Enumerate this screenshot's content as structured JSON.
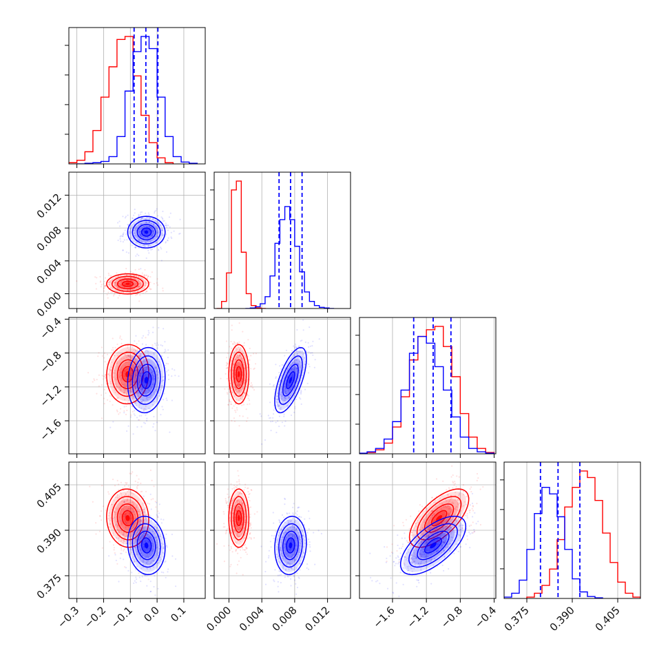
{
  "chart_data": {
    "type": "corner",
    "colors": {
      "primary": "#0000ff",
      "secondary": "#ff0000"
    },
    "parameters": [
      {
        "range": [
          -0.33,
          0.18
        ],
        "ticks": [
          -0.3,
          -0.2,
          -0.1,
          0.0,
          0.1
        ],
        "tick_labels": [
          "−0.3",
          "−0.2",
          "−0.1",
          "0.0",
          "0.1"
        ]
      },
      {
        "range": [
          -0.0018,
          0.0148
        ],
        "ticks": [
          0.0,
          0.004,
          0.008,
          0.012
        ],
        "tick_labels": [
          "0.000",
          "0.004",
          "0.008",
          "0.012"
        ]
      },
      {
        "range": [
          -1.99,
          -0.38
        ],
        "ticks": [
          -1.6,
          -1.2,
          -0.8,
          -0.4
        ],
        "tick_labels": [
          "−1.6",
          "−1.2",
          "−0.8",
          "−0.4"
        ]
      },
      {
        "range": [
          0.3675,
          0.4125
        ],
        "ticks": [
          0.375,
          0.39,
          0.405
        ],
        "tick_labels": [
          "0.375",
          "0.390",
          "0.405"
        ]
      }
    ],
    "primary": {
      "color": "#0000ff",
      "means": [
        -0.04,
        0.0075,
        -1.12,
        0.385
      ],
      "sds": [
        0.04,
        0.0011,
        0.22,
        0.0055
      ],
      "quantile_lines": [
        [
          -0.086,
          -0.042,
          0.003
        ],
        [
          0.0061,
          0.0075,
          0.0089
        ],
        [
          -1.35,
          -1.12,
          -0.91
        ],
        [
          0.3795,
          0.3853,
          0.3925
        ]
      ],
      "histograms": [
        {
          "edges": [
            -0.3,
            -0.27,
            -0.24,
            -0.21,
            -0.18,
            -0.15,
            -0.12,
            -0.09,
            -0.06,
            -0.03,
            0.0,
            0.03,
            0.06,
            0.09,
            0.12,
            0.15
          ],
          "counts": [
            0,
            1,
            2,
            4,
            12,
            45,
            120,
            185,
            210,
            190,
            110,
            45,
            12,
            3,
            1
          ]
        },
        {
          "edges": [
            0.002,
            0.0026,
            0.0032,
            0.0038,
            0.0044,
            0.005,
            0.0056,
            0.0062,
            0.0068,
            0.0074,
            0.008,
            0.0086,
            0.0092,
            0.0098,
            0.0104,
            0.011,
            0.0116,
            0.0122,
            0.0128
          ],
          "counts": [
            0,
            1,
            3,
            8,
            20,
            55,
            110,
            150,
            172,
            150,
            105,
            62,
            28,
            12,
            5,
            2,
            1,
            0
          ]
        },
        {
          "edges": [
            -2.0,
            -1.9,
            -1.8,
            -1.7,
            -1.6,
            -1.5,
            -1.4,
            -1.3,
            -1.2,
            -1.1,
            -1.0,
            -0.9,
            -0.8,
            -0.7,
            -0.6,
            -0.5,
            -0.4
          ],
          "counts": [
            1,
            3,
            8,
            22,
            48,
            95,
            150,
            175,
            165,
            130,
            95,
            55,
            25,
            8,
            3,
            1
          ]
        },
        {
          "edges": [
            0.3675,
            0.37,
            0.3725,
            0.375,
            0.3775,
            0.38,
            0.3825,
            0.385,
            0.3875,
            0.39,
            0.3925,
            0.395,
            0.3975,
            0.4
          ],
          "counts": [
            2,
            8,
            28,
            75,
            130,
            170,
            160,
            125,
            75,
            30,
            10,
            3,
            1
          ]
        }
      ]
    },
    "secondary": {
      "color": "#ff0000",
      "means": [
        -0.11,
        0.0012,
        -1.05,
        0.394
      ],
      "sds": [
        0.045,
        0.0007,
        0.2,
        0.0055
      ],
      "histograms": [
        {
          "edges": [
            -0.33,
            -0.3,
            -0.27,
            -0.24,
            -0.21,
            -0.18,
            -0.15,
            -0.12,
            -0.09,
            -0.06,
            -0.03,
            0.0,
            0.03,
            0.06
          ],
          "counts": [
            2,
            6,
            20,
            55,
            110,
            160,
            205,
            210,
            145,
            80,
            35,
            10,
            2
          ]
        },
        {
          "edges": [
            -0.0015,
            -0.0009,
            -0.0003,
            0.0003,
            0.0009,
            0.0015,
            0.0021,
            0.0027,
            0.0033,
            0.0039,
            0.0045
          ],
          "counts": [
            0,
            12,
            60,
            200,
            215,
            95,
            25,
            5,
            1,
            0
          ]
        },
        {
          "edges": [
            -1.9,
            -1.8,
            -1.7,
            -1.6,
            -1.5,
            -1.4,
            -1.3,
            -1.2,
            -1.1,
            -1.0,
            -0.9,
            -0.8,
            -0.7,
            -0.6,
            -0.5,
            -0.4
          ],
          "counts": [
            2,
            6,
            16,
            40,
            85,
            140,
            175,
            185,
            190,
            160,
            115,
            60,
            25,
            8,
            2
          ]
        },
        {
          "edges": [
            0.375,
            0.3775,
            0.38,
            0.3825,
            0.385,
            0.3875,
            0.39,
            0.3925,
            0.395,
            0.3975,
            0.4,
            0.4025,
            0.405,
            0.4075,
            0.41,
            0.4125
          ],
          "counts": [
            2,
            8,
            20,
            45,
            90,
            140,
            170,
            195,
            185,
            150,
            100,
            55,
            25,
            8,
            2
          ]
        }
      ]
    }
  }
}
